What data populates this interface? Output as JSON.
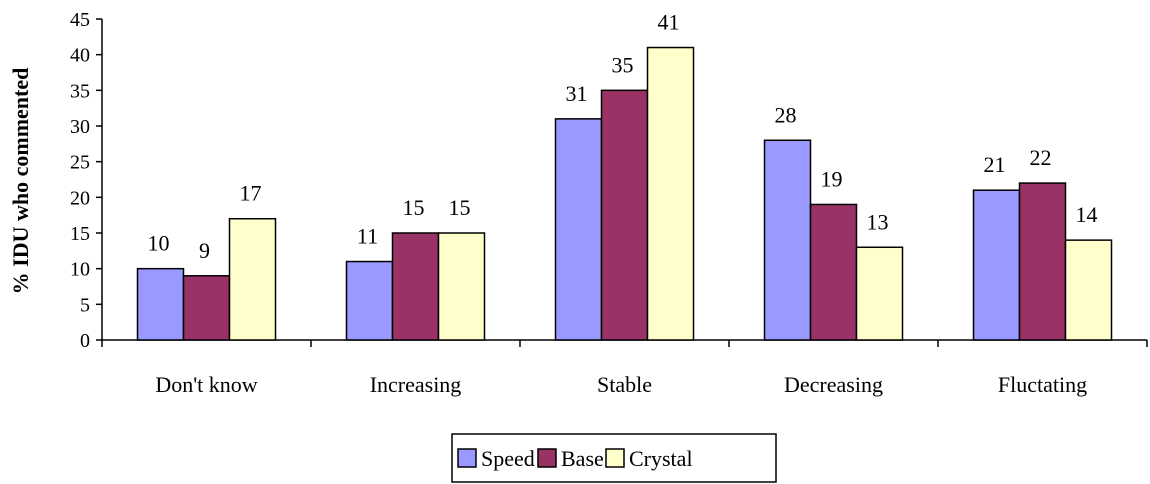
{
  "chart_data": {
    "type": "bar",
    "categories": [
      "Don't know",
      "Increasing",
      "Stable",
      "Decreasing",
      "Fluctating"
    ],
    "series": [
      {
        "name": "Speed",
        "values": [
          10,
          11,
          31,
          28,
          21
        ],
        "color": "#9999ff"
      },
      {
        "name": "Base",
        "values": [
          9,
          15,
          35,
          19,
          22
        ],
        "color": "#993366"
      },
      {
        "name": "Crystal",
        "values": [
          17,
          15,
          41,
          13,
          14
        ],
        "color": "#ffffcc"
      }
    ],
    "title": "",
    "xlabel": "",
    "ylabel": "% IDU who commented",
    "ylim": [
      0,
      45
    ],
    "yticks": [
      0,
      5,
      10,
      15,
      20,
      25,
      30,
      35,
      40,
      45
    ],
    "data_labels": true,
    "grid": false,
    "legend_position": "bottom-center"
  }
}
